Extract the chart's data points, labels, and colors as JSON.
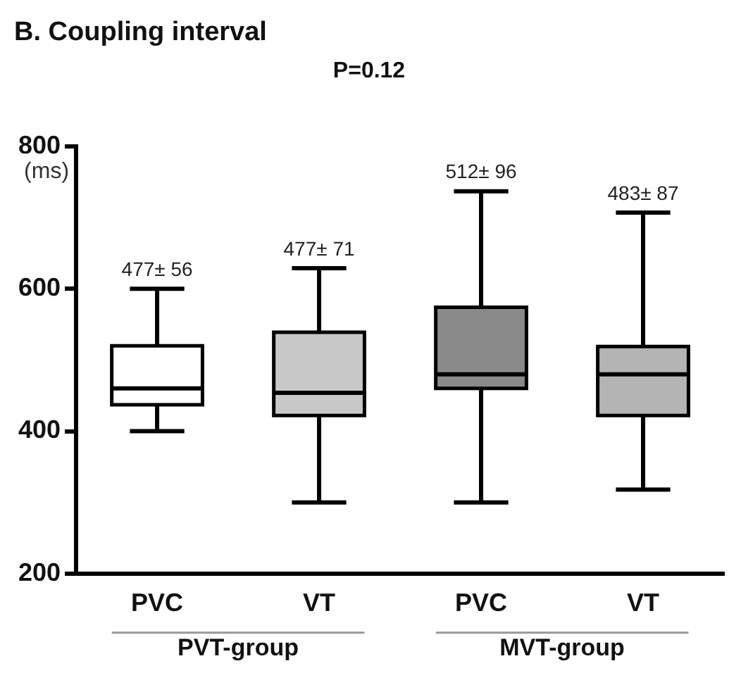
{
  "chart_data": {
    "type": "box",
    "title": "B. Coupling interval",
    "subtitle": "P=0.12",
    "ylabel": "(ms)",
    "categories": [
      "PVC",
      "VT",
      "PVC",
      "VT"
    ],
    "boxes": [
      {
        "low": 400,
        "q1": 437,
        "median": 460,
        "q3": 520,
        "high": 600
      },
      {
        "low": 300,
        "q1": 422,
        "median": 454,
        "q3": 539,
        "high": 629
      },
      {
        "low": 300,
        "q1": 460,
        "median": 480,
        "q3": 574,
        "high": 737
      },
      {
        "low": 318,
        "q1": 422,
        "median": 480,
        "q3": 519,
        "high": 707
      }
    ],
    "colors": [
      "#ffffff",
      "#c8c8c8",
      "#8a8a8a",
      "#b4b4b4"
    ],
    "annotations": [
      "477± 56",
      "477± 71",
      "512± 96",
      "483± 87",
      "PVT-group",
      "MVT-group"
    ],
    "ylim": [
      200,
      800
    ],
    "yticks": [
      200,
      400,
      600,
      800
    ],
    "grid": false,
    "legend": false
  }
}
